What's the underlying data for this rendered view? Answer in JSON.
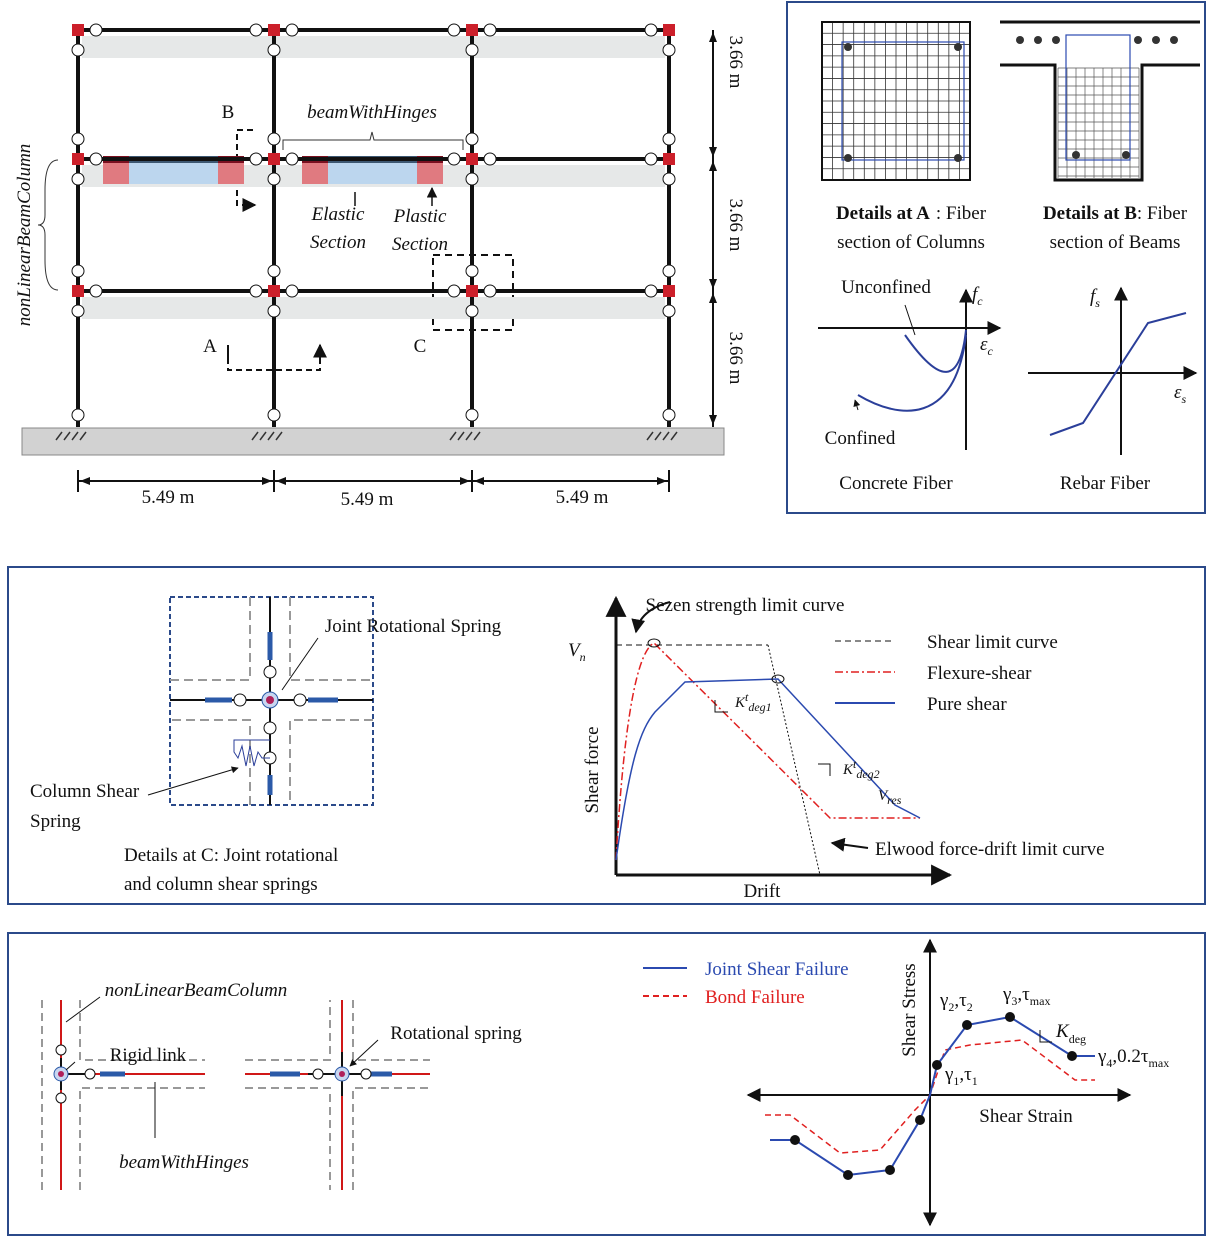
{
  "frame": {
    "column_label": "nonLinearBeamColumn",
    "beam_label": "beamWithHinges",
    "markers": [
      "A",
      "B",
      "C"
    ],
    "elastic": [
      "Elastic",
      "Section"
    ],
    "plastic": [
      "Plastic",
      "Section"
    ],
    "heights": [
      "3.66 m",
      "3.66 m",
      "3.66 m"
    ],
    "spans": [
      "5.49 m",
      "5.49 m",
      "5.49 m"
    ]
  },
  "fiber_details": {
    "a_title": "Details at A",
    "a_rest": ": Fiber",
    "a_line2": "section of Columns",
    "b_title": "Details at B",
    "b_rest": ": Fiber",
    "b_line2": "section of Beams",
    "unconfined": "Unconfined",
    "confined": "Confined",
    "fc": {
      "base": "f",
      "sub": "c"
    },
    "ec": {
      "base": "ε",
      "sub": "c"
    },
    "fs": {
      "base": "f",
      "sub": "s"
    },
    "es": {
      "base": "ε",
      "sub": "s"
    },
    "concrete": "Concrete Fiber",
    "rebar": "Rebar Fiber"
  },
  "joint_springs": {
    "rotational": "Joint Rotational Spring",
    "shear": [
      "Column Shear",
      "Spring"
    ],
    "caption": [
      "Details at C: Joint rotational",
      "and column shear springs"
    ]
  },
  "shear_model": {
    "sezen": "Sezen strength limit curve",
    "vn": {
      "base": "V",
      "sub": "n"
    },
    "y_label": "Shear force",
    "x_label": "Drift",
    "k1": {
      "base": "K",
      "sup": "t",
      "sub": "deg1"
    },
    "k2": {
      "base": "K",
      "sup": "t",
      "sub": "deg2"
    },
    "vres": {
      "base": "V",
      "sub": "res"
    },
    "elwood": "Elwood force-drift limit curve",
    "legend": [
      "Shear limit curve",
      "Flexure-shear",
      "Pure shear"
    ]
  },
  "joint_model": {
    "column_label": "nonLinearBeamColumn",
    "rigid": "Rigid link",
    "beam_label": "beamWithHinges",
    "spring": "Rotational spring",
    "legend": [
      "Joint Shear Failure",
      "Bond Failure"
    ],
    "y_label": "Shear Stress",
    "x_label": "Shear Strain",
    "p1": [
      "γ",
      "1",
      ",τ",
      "1"
    ],
    "p2": [
      "γ",
      "2",
      ",τ",
      "2"
    ],
    "p3": [
      "γ",
      "3",
      ",τ",
      "max"
    ],
    "kdeg": [
      "K",
      "deg"
    ],
    "p4": [
      "γ",
      "4",
      ",0.2τ",
      "max"
    ]
  }
}
